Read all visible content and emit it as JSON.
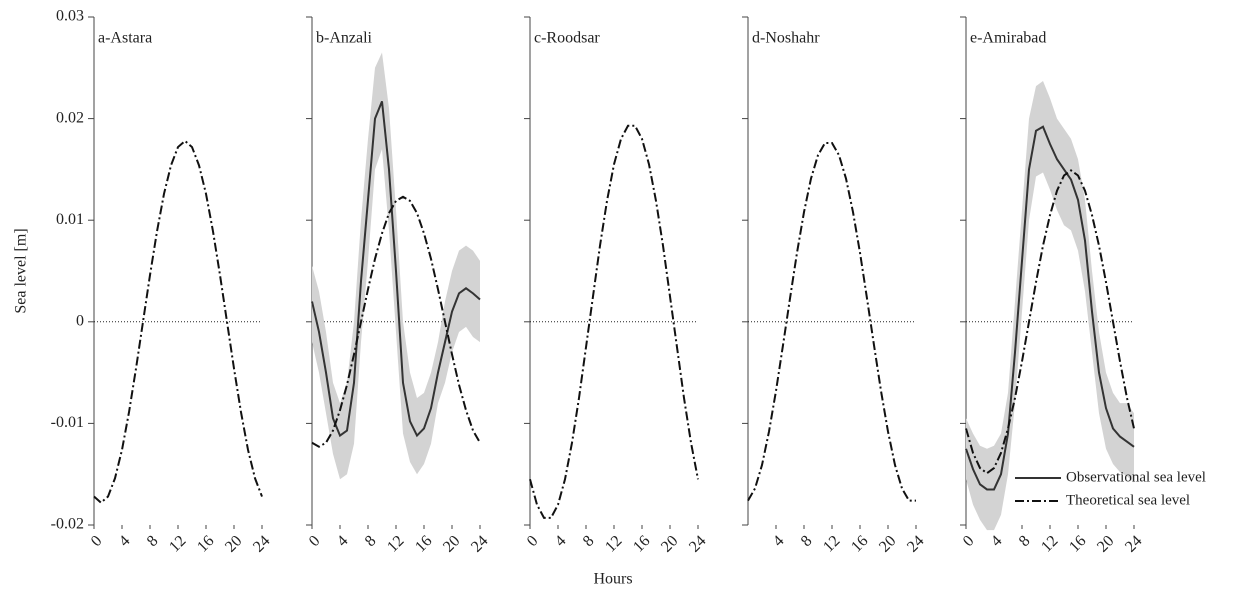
{
  "chart_data": {
    "type": "line",
    "xlabel": "Hours",
    "ylabel": "Sea level [m]",
    "legend": "lower right",
    "legend_panel": 4,
    "panels": [
      {
        "title": "a-Astara",
        "xlim": [
          0,
          24
        ],
        "xticks": [
          0,
          4,
          8,
          12,
          16,
          20,
          24
        ],
        "ylim": [
          -0.02,
          0.03
        ],
        "yticks": [
          -0.02,
          -0.01,
          0,
          0.01,
          0.02,
          0.03
        ],
        "show_ytick_labels": true,
        "hline": 0,
        "x": [
          0,
          1,
          2,
          3,
          4,
          5,
          6,
          7,
          8,
          9,
          10,
          11,
          12,
          13,
          14,
          15,
          16,
          17,
          18,
          19,
          20,
          21,
          22,
          23,
          24
        ],
        "series": [
          {
            "name": "Theoretical sea level",
            "color": "#111111",
            "style": "dashdot",
            "values": [
              -0.0172,
              -0.0178,
              -0.0172,
              -0.0154,
              -0.0126,
              -0.0089,
              -0.0046,
              0,
              0.0046,
              0.0089,
              0.0126,
              0.0154,
              0.0172,
              0.0178,
              0.0172,
              0.0154,
              0.0126,
              0.0089,
              0.0046,
              0,
              -0.0046,
              -0.0089,
              -0.0126,
              -0.0154,
              -0.0172
            ]
          }
        ]
      },
      {
        "title": "b-Anzali",
        "xlim": [
          0,
          24
        ],
        "xticks": [
          0,
          4,
          8,
          12,
          16,
          20,
          24
        ],
        "ylim": [
          -0.02,
          0.03
        ],
        "yticks": [
          -0.02,
          -0.01,
          0,
          0.01,
          0.02,
          0.03
        ],
        "show_ytick_labels": false,
        "hline": 0,
        "x": [
          0,
          1,
          2,
          3,
          4,
          5,
          6,
          7,
          8,
          9,
          10,
          11,
          12,
          13,
          14,
          15,
          16,
          17,
          18,
          19,
          20,
          21,
          22,
          23,
          24
        ],
        "series": [
          {
            "name": "Observational sea level",
            "color": "#333333",
            "style": "solid",
            "values": [
              0.002,
              -0.001,
              -0.005,
              -0.0095,
              -0.0112,
              -0.0107,
              -0.006,
              0.004,
              0.012,
              0.02,
              0.0217,
              0.015,
              0.005,
              -0.006,
              -0.0098,
              -0.0112,
              -0.0105,
              -0.0085,
              -0.005,
              -0.002,
              0.001,
              0.0028,
              0.0033,
              0.0028,
              0.0022
            ],
            "band": {
              "color": "#d3d3d3",
              "upper": [
                0.0055,
                0.003,
                -0.001,
                -0.006,
                -0.008,
                -0.006,
                0,
                0.01,
                0.018,
                0.025,
                0.0265,
                0.021,
                0.011,
                0,
                -0.005,
                -0.0075,
                -0.007,
                -0.005,
                -0.002,
                0.002,
                0.005,
                0.007,
                0.0075,
                0.007,
                0.006
              ],
              "lower": [
                -0.002,
                -0.005,
                -0.009,
                -0.013,
                -0.0155,
                -0.015,
                -0.012,
                -0.002,
                0.006,
                0.015,
                0.017,
                0.009,
                -0.001,
                -0.011,
                -0.0138,
                -0.015,
                -0.014,
                -0.012,
                -0.008,
                -0.006,
                -0.003,
                -0.001,
                -0.0005,
                -0.0015,
                -0.002
              ]
            }
          },
          {
            "name": "Theoretical sea level",
            "color": "#111111",
            "style": "dashdot",
            "values": [
              -0.0119,
              -0.0123,
              -0.0119,
              -0.0107,
              -0.0087,
              -0.0062,
              -0.0032,
              0,
              0.0032,
              0.0062,
              0.0087,
              0.0107,
              0.0119,
              0.0123,
              0.0119,
              0.0107,
              0.0087,
              0.0062,
              0.0032,
              0,
              -0.0032,
              -0.0062,
              -0.0087,
              -0.0107,
              -0.0119
            ]
          }
        ]
      },
      {
        "title": "c-Roodsar",
        "xlim": [
          0,
          24
        ],
        "xticks": [
          0,
          4,
          8,
          12,
          16,
          20,
          24
        ],
        "ylim": [
          -0.02,
          0.03
        ],
        "yticks": [
          -0.02,
          -0.01,
          0,
          0.01,
          0.02,
          0.03
        ],
        "show_ytick_labels": false,
        "hline": 0,
        "x": [
          0,
          1,
          2,
          3,
          4,
          5,
          6,
          7,
          8,
          9,
          10,
          11,
          12,
          13,
          14,
          15,
          16,
          17,
          18,
          19,
          20,
          21,
          22,
          23,
          24
        ],
        "series": [
          {
            "name": "Theoretical sea level",
            "color": "#111111",
            "style": "dashdot",
            "values": [
              -0.0155,
              -0.018,
              -0.0193,
              -0.0193,
              -0.018,
              -0.0155,
              -0.0119,
              -0.0075,
              -0.0025,
              0.0025,
              0.0075,
              0.0119,
              0.0155,
              0.018,
              0.0193,
              0.0193,
              0.018,
              0.0155,
              0.0119,
              0.0075,
              0.0025,
              -0.0025,
              -0.0075,
              -0.0119,
              -0.0155
            ]
          }
        ]
      },
      {
        "title": "d-Noshahr",
        "xlim": [
          0,
          24
        ],
        "xticks": [
          4,
          8,
          12,
          16,
          20,
          24
        ],
        "ylim": [
          -0.02,
          0.03
        ],
        "yticks": [
          -0.02,
          -0.01,
          0,
          0.01,
          0.02,
          0.03
        ],
        "show_ytick_labels": false,
        "hline": 0,
        "x": [
          0,
          1,
          2,
          3,
          4,
          5,
          6,
          7,
          8,
          9,
          10,
          11,
          12,
          13,
          14,
          15,
          16,
          17,
          18,
          19,
          20,
          21,
          22,
          23,
          24
        ],
        "series": [
          {
            "name": "Theoretical sea level",
            "color": "#111111",
            "style": "dashdot",
            "values": [
              -0.0176,
              -0.0164,
              -0.0141,
              -0.0108,
              -0.0068,
              -0.0023,
              0.0023,
              0.0068,
              0.0108,
              0.0141,
              0.0164,
              0.0176,
              0.0176,
              0.0164,
              0.0141,
              0.0108,
              0.0068,
              0.0023,
              -0.0023,
              -0.0068,
              -0.0108,
              -0.0141,
              -0.0164,
              -0.0176,
              -0.0176
            ]
          }
        ]
      },
      {
        "title": "e-Amirabad",
        "xlim": [
          0,
          24
        ],
        "xticks": [
          0,
          4,
          8,
          12,
          16,
          20,
          24
        ],
        "ylim": [
          -0.02,
          0.03
        ],
        "yticks": [
          -0.02,
          -0.01,
          0,
          0.01,
          0.02,
          0.03
        ],
        "show_ytick_labels": false,
        "hline": 0,
        "x": [
          0,
          1,
          2,
          3,
          4,
          5,
          6,
          7,
          8,
          9,
          10,
          11,
          12,
          13,
          14,
          15,
          16,
          17,
          18,
          19,
          20,
          21,
          22,
          23,
          24
        ],
        "series": [
          {
            "name": "Observational sea level",
            "color": "#333333",
            "style": "solid",
            "values": [
              -0.0125,
              -0.0145,
              -0.016,
              -0.0165,
              -0.0165,
              -0.015,
              -0.011,
              -0.003,
              0.006,
              0.015,
              0.0188,
              0.0192,
              0.0175,
              0.016,
              0.015,
              0.014,
              0.012,
              0.008,
              0.001,
              -0.005,
              -0.0085,
              -0.0105,
              -0.0113,
              -0.0118,
              -0.0123
            ],
            "band": {
              "color": "#d3d3d3",
              "upper": [
                -0.0095,
                -0.011,
                -0.0122,
                -0.0125,
                -0.0122,
                -0.011,
                -0.007,
                0.002,
                0.011,
                0.02,
                0.0232,
                0.0237,
                0.022,
                0.02,
                0.019,
                0.018,
                0.016,
                0.012,
                0.005,
                -0.001,
                -0.005,
                -0.007,
                -0.008,
                -0.008,
                -0.009
              ],
              "lower": [
                -0.0155,
                -0.018,
                -0.0195,
                -0.0205,
                -0.0205,
                -0.019,
                -0.015,
                -0.008,
                0.001,
                0.01,
                0.0143,
                0.0147,
                0.013,
                0.011,
                0.0095,
                0.009,
                0.007,
                0.003,
                -0.003,
                -0.009,
                -0.0125,
                -0.014,
                -0.0148,
                -0.0152,
                -0.0158
              ]
            }
          },
          {
            "name": "Theoretical sea level",
            "color": "#111111",
            "style": "dashdot",
            "values": [
              -0.0105,
              -0.0129,
              -0.0144,
              -0.0149,
              -0.0144,
              -0.0129,
              -0.0105,
              -0.0075,
              -0.0039,
              0,
              0.0039,
              0.0075,
              0.0105,
              0.0129,
              0.0144,
              0.0149,
              0.0144,
              0.0129,
              0.0105,
              0.0075,
              0.0039,
              0,
              -0.0039,
              -0.0075,
              -0.0105
            ]
          }
        ]
      }
    ]
  }
}
